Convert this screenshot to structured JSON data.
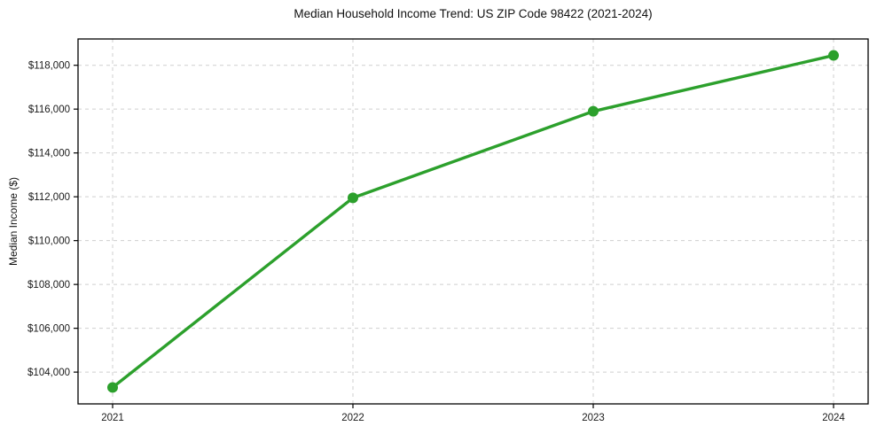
{
  "colors": {
    "line": "#2ca02c",
    "marker": "#2ca02c",
    "grid": "#cfcfcf",
    "axis": "#000000",
    "text": "#1a1a1a",
    "background": "#ffffff"
  },
  "chart_data": {
    "type": "line",
    "title": "Median Household Income Trend: US ZIP Code 98422 (2021-2024)",
    "xlabel": "",
    "ylabel": "Median Income ($)",
    "categories": [
      "2021",
      "2022",
      "2023",
      "2024"
    ],
    "series": [
      {
        "name": "Median Household Income",
        "values": [
          103300,
          111950,
          115900,
          118450
        ],
        "color": "#2ca02c",
        "marker": "circle"
      }
    ],
    "y_ticks": [
      104000,
      106000,
      108000,
      110000,
      112000,
      114000,
      116000,
      118000
    ],
    "y_tick_labels": [
      "$104,000",
      "$106,000",
      "$108,000",
      "$110,000",
      "$112,000",
      "$114,000",
      "$116,000",
      "$118,000"
    ],
    "ylim": [
      102550,
      119200
    ],
    "grid": true,
    "grid_style": "dashed",
    "legend": "none"
  }
}
